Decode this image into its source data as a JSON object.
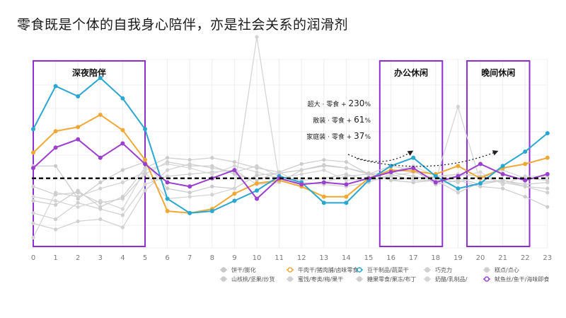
{
  "title": "零食既是个体的自我身心陪伴，亦是社会关系的润滑剂",
  "chart_data": {
    "type": "line",
    "x": [
      0,
      1,
      2,
      3,
      4,
      5,
      6,
      7,
      8,
      9,
      10,
      11,
      12,
      13,
      14,
      15,
      16,
      17,
      18,
      19,
      20,
      21,
      22,
      23
    ],
    "baseline": 0,
    "ylim": [
      -68,
      116
    ],
    "highlights": [
      {
        "label": "深夜陪伴",
        "from": 0,
        "to": 5
      },
      {
        "label": "办公休闲",
        "from": 15.5,
        "to": 18.3
      },
      {
        "label": "晚间休闲",
        "from": 19.4,
        "to": 22.2
      }
    ],
    "annotations": [
      {
        "prefix": "超大 · 零食 + ",
        "value": "230",
        "suffix": "%"
      },
      {
        "prefix": "散装 · 零食 + ",
        "value": "61",
        "suffix": "%"
      },
      {
        "prefix": "家庭装 · 零食 + ",
        "value": "37",
        "suffix": "%"
      }
    ],
    "series": [
      {
        "name": "饼干/膨化",
        "color": "#c9c9c9",
        "highlight": false,
        "values": [
          12,
          12,
          -20,
          -4,
          8,
          16,
          -10,
          -14,
          -8,
          -10,
          3,
          5,
          8,
          13,
          10,
          5,
          -2,
          -4,
          -2,
          0,
          -6,
          -2,
          -6,
          -4
        ]
      },
      {
        "name": "牛肉干/猪肉脯/卤味零食",
        "color": "#f0a835",
        "highlight": true,
        "values": [
          25,
          46,
          50,
          62,
          47,
          18,
          -32,
          -34,
          -30,
          -15,
          -5,
          -2,
          -8,
          -18,
          -18,
          0,
          8,
          7,
          4,
          12,
          0,
          10,
          14,
          20
        ]
      },
      {
        "name": "豆干制品/蔬菜干",
        "color": "#2aa7d0",
        "highlight": true,
        "values": [
          48,
          90,
          80,
          98,
          78,
          48,
          -20,
          -34,
          -32,
          -22,
          -12,
          2,
          -4,
          -24,
          -24,
          -2,
          12,
          20,
          2,
          -10,
          -5,
          12,
          26,
          44
        ]
      },
      {
        "name": "巧克力",
        "color": "#d2d2d2",
        "highlight": false,
        "values": [
          -58,
          -14,
          -18,
          -10,
          -4,
          6,
          -20,
          -18,
          -16,
          -10,
          138,
          -2,
          -4,
          -6,
          -8,
          -4,
          4,
          -2,
          -2,
          70,
          -4,
          -2,
          -6,
          -4
        ]
      },
      {
        "name": "糕点/点心",
        "color": "#cfcfcf",
        "highlight": false,
        "values": [
          -34,
          -40,
          -24,
          -30,
          -36,
          -6,
          2,
          4,
          6,
          8,
          -6,
          -4,
          8,
          12,
          10,
          4,
          -2,
          0,
          2,
          4,
          2,
          -4,
          -8,
          -14
        ]
      },
      {
        "name": "山核桃/坚果/炒货",
        "color": "#cccccc",
        "highlight": false,
        "values": [
          -22,
          -26,
          -12,
          -28,
          -18,
          10,
          20,
          18,
          20,
          16,
          10,
          6,
          14,
          18,
          16,
          4,
          12,
          8,
          -6,
          -2,
          -8,
          -10,
          -18,
          -28
        ]
      },
      {
        "name": "蜜饯/枣类/梅/果干",
        "color": "#d0d0d0",
        "highlight": false,
        "values": [
          -44,
          -50,
          -42,
          -40,
          -48,
          -12,
          8,
          14,
          10,
          6,
          12,
          2,
          -2,
          0,
          4,
          -2,
          2,
          6,
          0,
          -4,
          2,
          8,
          0,
          -2
        ]
      },
      {
        "name": "糖果零食/果冻/布丁",
        "color": "#cdcdcd",
        "highlight": false,
        "values": [
          -8,
          -16,
          -14,
          -24,
          -20,
          4,
          16,
          12,
          12,
          4,
          -2,
          6,
          -6,
          -4,
          2,
          4,
          6,
          2,
          -2,
          -14,
          -4,
          -2,
          -8,
          -10
        ]
      },
      {
        "name": "奶酪/乳制品/",
        "color": "#d5d5d5",
        "highlight": false,
        "values": [
          -18,
          -22,
          -28,
          -22,
          -30,
          8,
          14,
          10,
          4,
          12,
          6,
          0,
          4,
          8,
          -2,
          0,
          6,
          12,
          2,
          2,
          6,
          -6,
          2,
          2
        ]
      },
      {
        "name": "鱿鱼丝/鱼干/海味即食",
        "color": "#9b3fd0",
        "highlight": true,
        "values": [
          10,
          30,
          38,
          20,
          34,
          14,
          -4,
          -8,
          0,
          8,
          -20,
          0,
          -6,
          -4,
          -6,
          0,
          6,
          10,
          -4,
          2,
          14,
          4,
          -2,
          4
        ]
      }
    ]
  }
}
